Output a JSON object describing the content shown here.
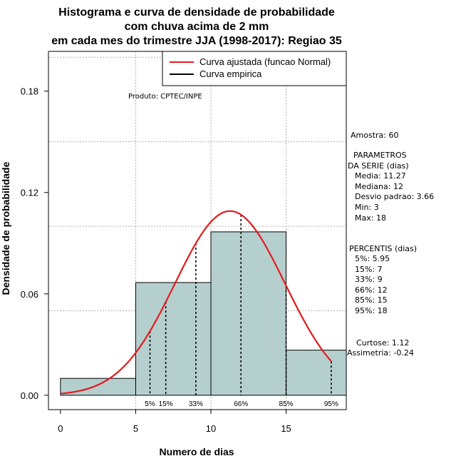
{
  "chart_data": {
    "type": "histogram",
    "title_lines": [
      "Histograma e curva de densidade de probabilidade",
      "com chuva acima de 2 mm",
      "em cada mes do trimestre JJA (1998-2017): Regiao 35"
    ],
    "xlabel": "Numero de dias",
    "ylabel": "Densidade de probabilidade",
    "xlim": [
      -0.8,
      19
    ],
    "ylim": [
      -0.0085,
      0.2035
    ],
    "x_ticks": [
      {
        "value": 0,
        "label": "0"
      },
      {
        "value": 5,
        "label": "5"
      },
      {
        "value": 10,
        "label": "10"
      },
      {
        "value": 15,
        "label": "15"
      }
    ],
    "y_ticks": [
      {
        "value": 0.0,
        "label": "0.00"
      },
      {
        "value": 0.06,
        "label": "0.06"
      },
      {
        "value": 0.12,
        "label": "0.12"
      },
      {
        "value": 0.18,
        "label": "0.18"
      }
    ],
    "grid_y": [
      0.05,
      0.1,
      0.15,
      0.2
    ],
    "grid_x": [
      5,
      10,
      15
    ],
    "bins": [
      {
        "from": 0,
        "to": 5,
        "density": 0.01
      },
      {
        "from": 5,
        "to": 10,
        "density": 0.0667
      },
      {
        "from": 10,
        "to": 15,
        "density": 0.0967
      },
      {
        "from": 15,
        "to": 19,
        "density": 0.0267
      }
    ],
    "bar_color": "#b5cfce",
    "normal_curve": {
      "mean": 11.27,
      "sd": 3.66,
      "from": 0,
      "to": 18,
      "color": "#e41a1c"
    },
    "percentile_markers": [
      {
        "label": "5%",
        "x": 5.95
      },
      {
        "label": "15%",
        "x": 7
      },
      {
        "label": "33%",
        "x": 9
      },
      {
        "label": "66%",
        "x": 12
      },
      {
        "label": "85%",
        "x": 15
      },
      {
        "label": "95%",
        "x": 18
      }
    ],
    "legend": [
      {
        "label": "Curva ajustada (funcao Normal)",
        "color": "#e41a1c"
      },
      {
        "label": "Curva empirica",
        "color": "#000000"
      }
    ],
    "legend_position": "top-right",
    "credit": "Produto: CPTEC/INPE",
    "side_panel": {
      "amostra": "Amostra: 60",
      "param_title_1": "PARAMETROS",
      "param_title_2": "DA SERIE (dias)",
      "media": "Media: 11.27",
      "mediana": "Mediana: 12",
      "desvio": "Desvio padrao: 3.66",
      "min": "Min: 3",
      "max": "Max: 18",
      "pct_title": "PERCENTIS (dias)",
      "p5": "5%: 5.95",
      "p15": "15%: 7",
      "p33": "33%: 9",
      "p66": "66%: 12",
      "p85": "85%: 15",
      "p95": "95%: 18",
      "curtose": "Curtose: 1.12",
      "assimetria": "Assimetria: -0.24"
    }
  }
}
